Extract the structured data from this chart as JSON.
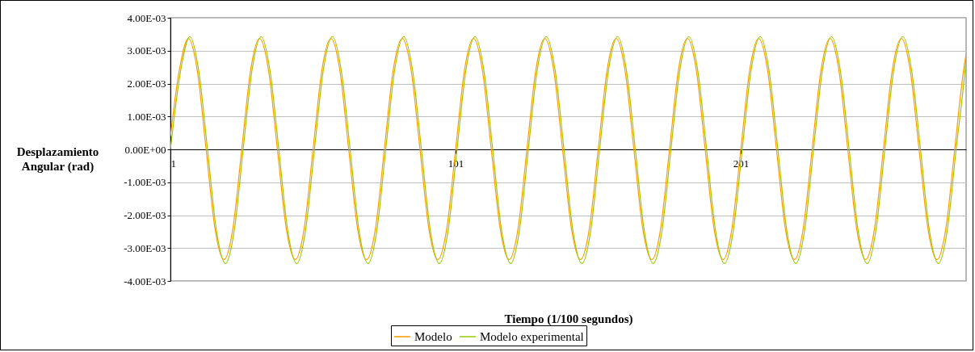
{
  "chart_data": {
    "type": "line",
    "xlabel": "Tiempo (1/100 segundos)",
    "ylabel": "Desplazamiento\nAngular (rad)",
    "x": [
      1,
      4.1,
      7.3,
      10.4,
      13.5,
      16.6,
      19.8,
      22.9,
      26,
      29.1,
      32.3,
      35.4,
      38.5,
      41.6,
      44.8,
      47.9,
      51,
      54.1,
      57.3,
      60.4,
      63.5,
      66.6,
      69.8,
      72.9,
      76,
      79.1,
      82.3,
      85.4,
      88.5,
      91.6,
      94.8,
      97.9,
      101,
      104.1,
      107.3,
      110.4,
      113.5,
      116.6,
      119.8,
      122.9,
      126,
      129.1,
      132.3,
      135.4,
      138.5,
      141.6,
      144.8,
      147.9,
      151,
      154.1,
      157.3,
      160.4,
      163.5,
      166.6,
      169.8,
      172.9,
      176,
      179.1,
      182.3,
      185.4,
      188.5,
      191.6,
      194.8,
      197.9,
      201,
      204.1,
      207.3,
      210.4,
      213.5,
      216.6,
      219.8,
      222.9,
      226,
      229.1,
      232.3,
      235.4,
      238.5,
      241.6,
      244.8,
      247.9,
      251,
      254.1,
      257.3,
      260.4,
      263.5,
      266.6,
      269.8,
      272.9,
      276,
      279.1,
      280
    ],
    "series": [
      {
        "name": "Modelo",
        "color": "#ff9900",
        "values": [
          0.0004,
          0.0024,
          0.00337,
          0.0024,
          0,
          -0.0024,
          -0.00335,
          -0.0024,
          0,
          0.0024,
          0.00337,
          0.0024,
          0,
          -0.0024,
          -0.00335,
          -0.0024,
          0,
          0.0024,
          0.00337,
          0.0024,
          0,
          -0.0024,
          -0.00335,
          -0.0024,
          0,
          0.0024,
          0.00337,
          0.0024,
          0,
          -0.0024,
          -0.00335,
          -0.0024,
          0,
          0.0024,
          0.00337,
          0.0024,
          0,
          -0.0024,
          -0.00335,
          -0.0024,
          0,
          0.0024,
          0.00337,
          0.0024,
          0,
          -0.0024,
          -0.00335,
          -0.0024,
          0,
          0.0024,
          0.00337,
          0.0024,
          0,
          -0.0024,
          -0.00335,
          -0.0024,
          0,
          0.0024,
          0.00337,
          0.0024,
          0,
          -0.0024,
          -0.00335,
          -0.0024,
          0,
          0.0024,
          0.00337,
          0.0024,
          0,
          -0.0024,
          -0.00335,
          -0.0024,
          0,
          0.0024,
          0.00337,
          0.0024,
          0,
          -0.0024,
          -0.00335,
          -0.0024,
          0,
          0.0024,
          0.00337,
          0.0024,
          0,
          -0.0024,
          -0.00335,
          -0.0024,
          0,
          0.0024,
          0.0029
        ]
      },
      {
        "name": "Modelo experimental",
        "color": "#99cc00",
        "x": [
          1,
          4.6,
          7.8,
          10.9,
          14,
          17.1,
          20.3,
          23.4,
          26.5,
          29.6,
          32.8,
          35.9,
          39,
          42.1,
          45.3,
          48.4,
          51.5,
          54.6,
          57.8,
          60.9,
          64,
          67.1,
          70.3,
          73.4,
          76.5,
          79.6,
          82.8,
          85.9,
          89,
          92.1,
          95.3,
          98.4,
          101.5,
          104.6,
          107.8,
          110.9,
          114,
          117.1,
          120.3,
          123.4,
          126.5,
          129.6,
          132.8,
          135.9,
          139,
          142.1,
          145.3,
          148.4,
          151.5,
          154.6,
          157.8,
          160.9,
          164,
          167.1,
          170.3,
          173.4,
          176.5,
          179.6,
          182.8,
          185.9,
          189,
          192.1,
          195.3,
          198.4,
          201.5,
          204.6,
          207.8,
          210.9,
          214,
          217.1,
          220.3,
          223.4,
          226.5,
          229.6,
          232.8,
          235.9,
          239,
          242.1,
          245.3,
          248.4,
          251.5,
          254.6,
          257.8,
          260.9,
          264,
          267.1,
          270.3,
          273.4,
          276.5,
          279.6,
          280
        ],
        "values": [
          0,
          0.0024,
          0.00343,
          0.0024,
          0,
          -0.00245,
          -0.00347,
          -0.00245,
          0,
          0.0024,
          0.00343,
          0.0024,
          0,
          -0.00245,
          -0.00347,
          -0.00245,
          0,
          0.0024,
          0.00343,
          0.0024,
          0,
          -0.00245,
          -0.00347,
          -0.00245,
          0,
          0.0024,
          0.00343,
          0.0024,
          0,
          -0.00245,
          -0.00347,
          -0.00245,
          0,
          0.0024,
          0.00343,
          0.0024,
          0,
          -0.00245,
          -0.00347,
          -0.00245,
          0,
          0.0024,
          0.00343,
          0.0024,
          0,
          -0.00245,
          -0.00347,
          -0.00245,
          0,
          0.0024,
          0.00343,
          0.0024,
          0,
          -0.00245,
          -0.00347,
          -0.00245,
          0,
          0.0024,
          0.00343,
          0.0024,
          0,
          -0.00245,
          -0.00347,
          -0.00245,
          0,
          0.0024,
          0.00343,
          0.0024,
          0,
          -0.00245,
          -0.00347,
          -0.00245,
          0,
          0.0024,
          0.00343,
          0.0024,
          0,
          -0.00245,
          -0.00347,
          -0.00245,
          0,
          0.0024,
          0.00343,
          0.0024,
          0,
          -0.00245,
          -0.00347,
          -0.00245,
          0,
          0.0024,
          0.0028
        ]
      }
    ],
    "xlim": [
      1,
      280
    ],
    "xticks": [
      1,
      101,
      201
    ],
    "ylim": [
      -0.004,
      0.004
    ],
    "yticks": [
      {
        "value": -0.004,
        "label": "-4.00E-03"
      },
      {
        "value": -0.003,
        "label": "-3.00E-03"
      },
      {
        "value": -0.002,
        "label": "-2.00E-03"
      },
      {
        "value": -0.001,
        "label": "-1.00E-03"
      },
      {
        "value": 0,
        "label": "0.00E+00"
      },
      {
        "value": 0.001,
        "label": "1.00E-03"
      },
      {
        "value": 0.002,
        "label": "2.00E-03"
      },
      {
        "value": 0.003,
        "label": "3.00E-03"
      },
      {
        "value": 0.004,
        "label": "4.00E-03"
      }
    ],
    "grid": "y",
    "legend": "bottom"
  }
}
